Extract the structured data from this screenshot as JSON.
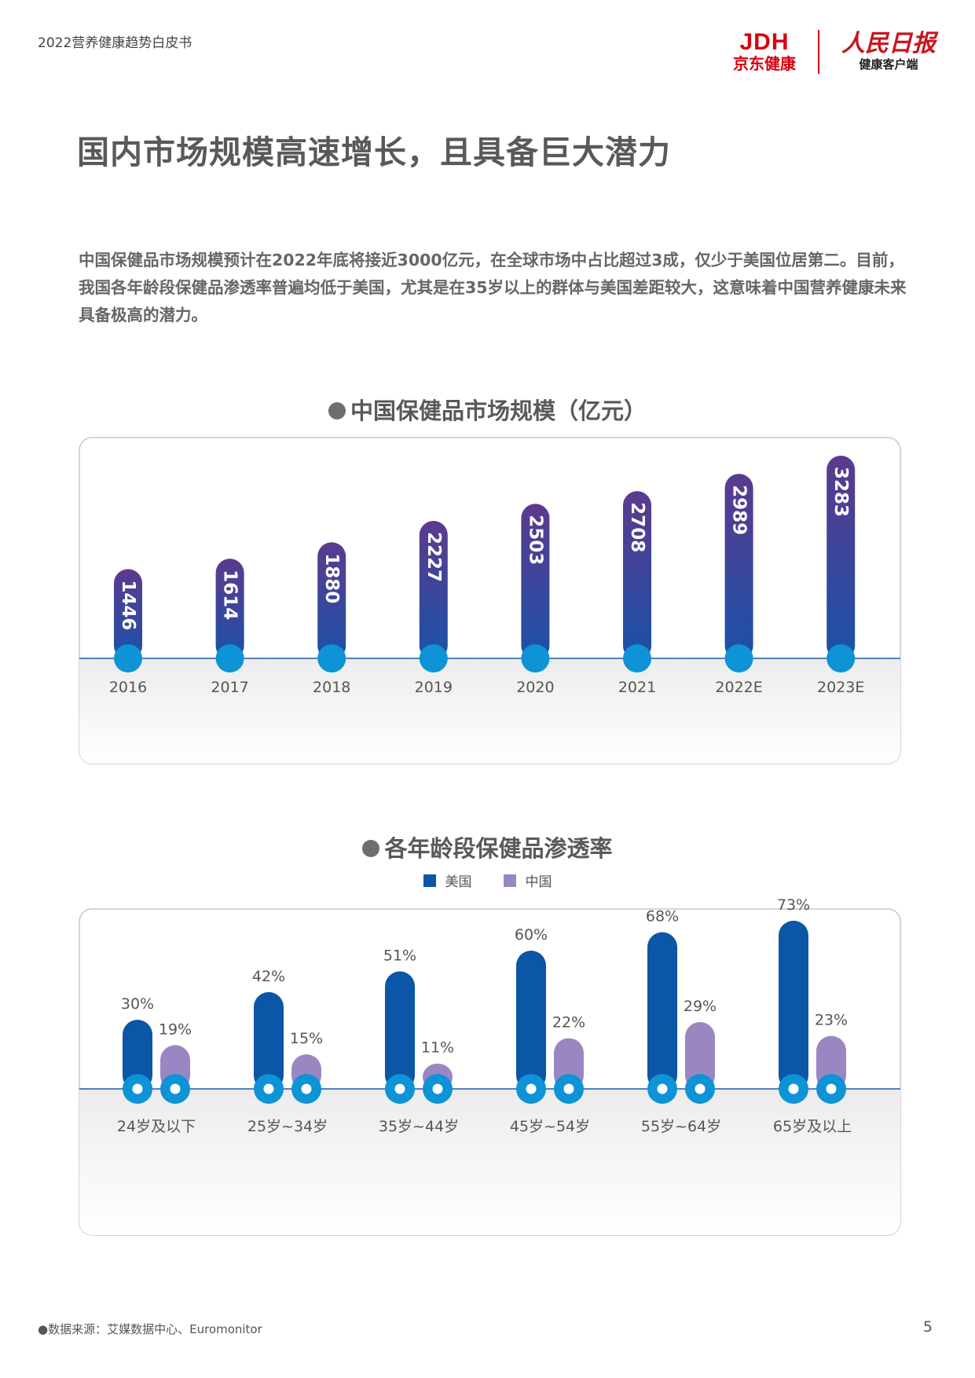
{
  "header": {
    "doc_title": "2022营养健康趋势白皮书",
    "logo_jd_mark": "JDH",
    "logo_jd_text": "京东健康",
    "logo_rmrb_mark": "人民日报",
    "logo_rmrb_text": "健康客户端"
  },
  "page": {
    "heading": "国内市场规模高速增长，且具备巨大潜力",
    "intro": "中国保健品市场规模预计在2022年底将接近3000亿元，在全球市场中占比超过3成，仅少于美国位居第二。目前，我国各年龄段保健品渗透率普遍均低于美国，尤其是在35岁以上的群体与美国差距较大，这意味着中国营养健康未来具备极高的潜力。"
  },
  "colors": {
    "bar_gradient_top": "#5c3a8e",
    "bar_gradient_bottom": "#1a52a8",
    "baseline_dot": "#0d93d6",
    "usa": "#0b56a6",
    "china": "#9a87c2"
  },
  "chart_data": [
    {
      "type": "bar",
      "title": "中国保健品市场规模（亿元）",
      "categories": [
        "2016",
        "2017",
        "2018",
        "2019",
        "2020",
        "2021",
        "2022E",
        "2023E"
      ],
      "values": [
        1446,
        1614,
        1880,
        2227,
        2503,
        2708,
        2989,
        3283
      ],
      "ylim": [
        0,
        3500
      ],
      "grid": false
    },
    {
      "type": "bar",
      "title": "各年龄段保健品渗透率",
      "categories": [
        "24岁及以下",
        "25岁~34岁",
        "35岁~44岁",
        "45岁~54岁",
        "55岁~64岁",
        "65岁及以上"
      ],
      "series": [
        {
          "name": "美国",
          "values": [
            30,
            42,
            51,
            60,
            68,
            73
          ],
          "labels": [
            "30%",
            "42%",
            "51%",
            "60%",
            "68%",
            "73%"
          ]
        },
        {
          "name": "中国",
          "values": [
            19,
            15,
            11,
            22,
            29,
            23
          ],
          "labels": [
            "19%",
            "15%",
            "11%",
            "22%",
            "29%",
            "23%"
          ]
        }
      ],
      "ylim": [
        0,
        80
      ],
      "legend": "top-center",
      "grid": false
    }
  ],
  "footer": {
    "source": "●数据来源：艾媒数据中心、Euromonitor",
    "page_number": "5"
  }
}
